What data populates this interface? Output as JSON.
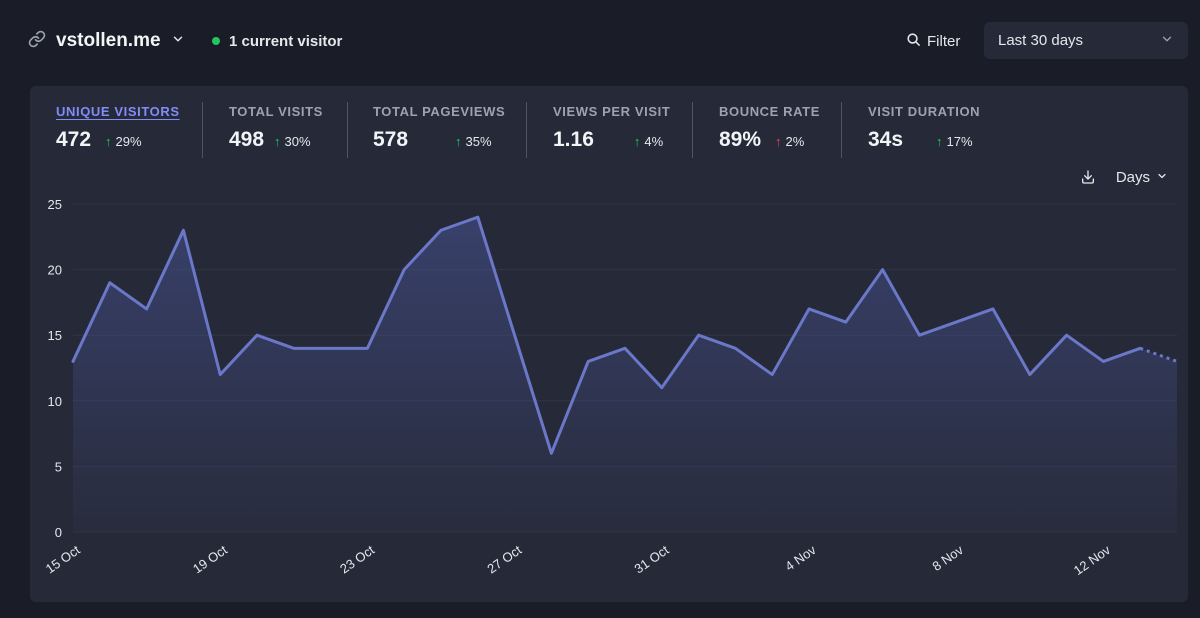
{
  "header": {
    "site_name": "vstollen.me",
    "current_visitors": "1 current visitor",
    "filter_label": "Filter",
    "period_label": "Last 30 days"
  },
  "stats": [
    {
      "label": "UNIQUE VISITORS",
      "value": "472",
      "change": "29%",
      "trend": "up",
      "active": true
    },
    {
      "label": "TOTAL VISITS",
      "value": "498",
      "change": "30%",
      "trend": "up"
    },
    {
      "label": "TOTAL PAGEVIEWS",
      "value": "578",
      "change": "35%",
      "trend": "up"
    },
    {
      "label": "VIEWS PER VISIT",
      "value": "1.16",
      "change": "4%",
      "trend": "up"
    },
    {
      "label": "BOUNCE RATE",
      "value": "89%",
      "change": "2%",
      "trend": "up-bad"
    },
    {
      "label": "VISIT DURATION",
      "value": "34s",
      "change": "17%",
      "trend": "up"
    }
  ],
  "interval_label": "Days",
  "colors": {
    "accent": "#818cf8",
    "line": "#6b77c9",
    "positive": "#22c55e",
    "negative": "#ef4444",
    "card": "#262a38",
    "background": "#1a1d27"
  },
  "icons": {
    "site": "link-icon",
    "site_menu": "chevron-down-icon",
    "live": "green-dot",
    "filter": "search-icon",
    "period_menu": "chevron-down-icon",
    "download": "download-icon",
    "interval_menu": "chevron-down-icon"
  },
  "chart_data": {
    "type": "line",
    "x": [
      "15 Oct",
      "16 Oct",
      "17 Oct",
      "18 Oct",
      "19 Oct",
      "20 Oct",
      "21 Oct",
      "22 Oct",
      "23 Oct",
      "24 Oct",
      "25 Oct",
      "26 Oct",
      "27 Oct",
      "28 Oct",
      "29 Oct",
      "30 Oct",
      "31 Oct",
      "1 Nov",
      "2 Nov",
      "3 Nov",
      "4 Nov",
      "5 Nov",
      "6 Nov",
      "7 Nov",
      "8 Nov",
      "9 Nov",
      "10 Nov",
      "11 Nov",
      "12 Nov",
      "13 Nov",
      "14 Nov"
    ],
    "xticks": [
      "15 Oct",
      "19 Oct",
      "23 Oct",
      "27 Oct",
      "31 Oct",
      "4 Nov",
      "8 Nov",
      "12 Nov"
    ],
    "series": [
      {
        "values": [
          13,
          19,
          17,
          23,
          12,
          15,
          14,
          14,
          14,
          20,
          23,
          24,
          15,
          6,
          13,
          14,
          11,
          15,
          14,
          12,
          17,
          16,
          20,
          15,
          16,
          17,
          12,
          15,
          13,
          14,
          13
        ]
      }
    ],
    "incomplete_last_point": true,
    "ylim": [
      0,
      25
    ],
    "yticks": [
      0,
      5,
      10,
      15,
      20,
      25
    ],
    "grid": true,
    "area_fill": true
  }
}
